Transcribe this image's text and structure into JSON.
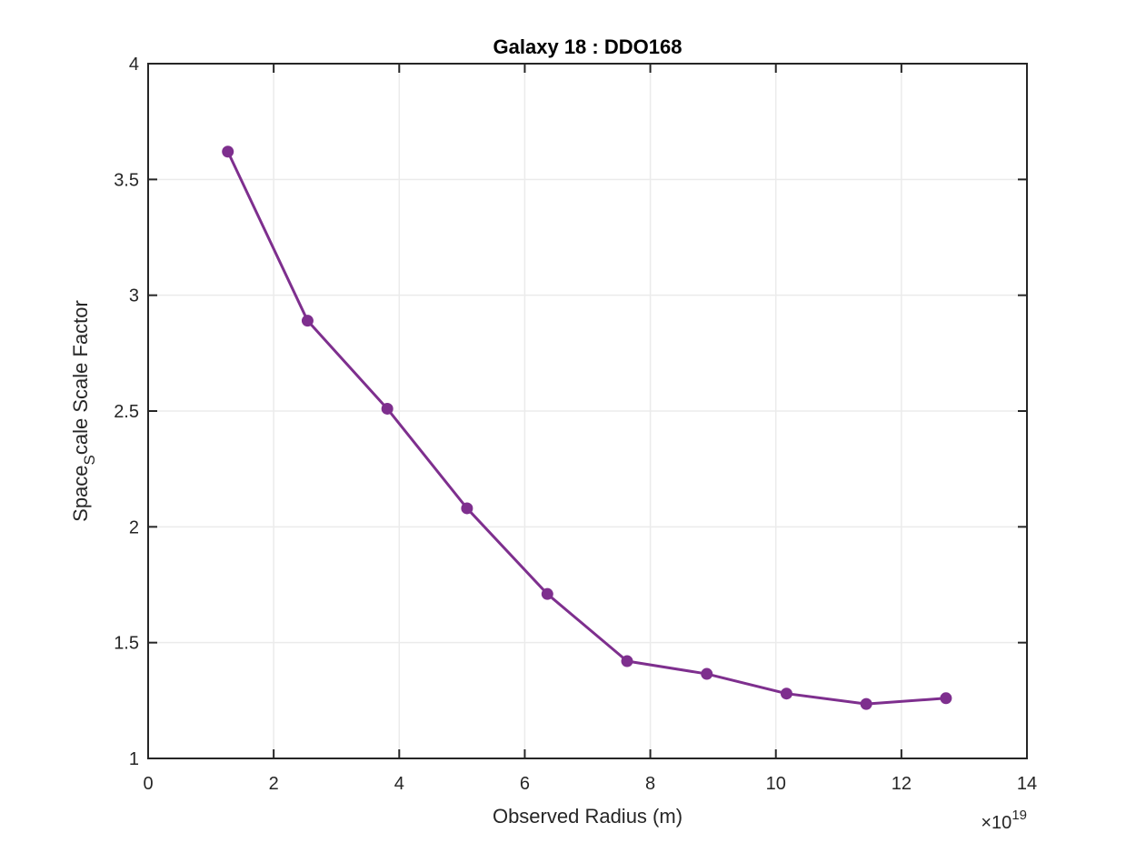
{
  "chart_data": {
    "type": "line",
    "title": "Galaxy 18 : DDO168",
    "xlabel": "Observed Radius (m)",
    "ylabel_parts": {
      "before": "Space",
      "subscript": "S",
      "after": "cale Scale Factor"
    },
    "x_exponent_label": {
      "base": "×10",
      "power": "19"
    },
    "xlim": [
      0,
      14
    ],
    "ylim": [
      1,
      4
    ],
    "xticks": [
      0,
      2,
      4,
      6,
      8,
      10,
      12,
      14
    ],
    "xtick_labels": [
      "0",
      "2",
      "4",
      "6",
      "8",
      "10",
      "12",
      "14"
    ],
    "yticks": [
      1,
      1.5,
      2,
      2.5,
      3,
      3.5,
      4
    ],
    "ytick_labels": [
      "1",
      "1.5",
      "2",
      "2.5",
      "3",
      "3.5",
      "4"
    ],
    "grid": true,
    "color": "#7e2f8e",
    "series": [
      {
        "name": "DDO168",
        "x": [
          1.27,
          2.54,
          3.81,
          5.08,
          6.36,
          7.63,
          8.9,
          10.17,
          11.44,
          12.71
        ],
        "y": [
          3.62,
          2.89,
          2.51,
          2.08,
          1.71,
          1.42,
          1.365,
          1.28,
          1.235,
          1.26
        ]
      }
    ]
  }
}
